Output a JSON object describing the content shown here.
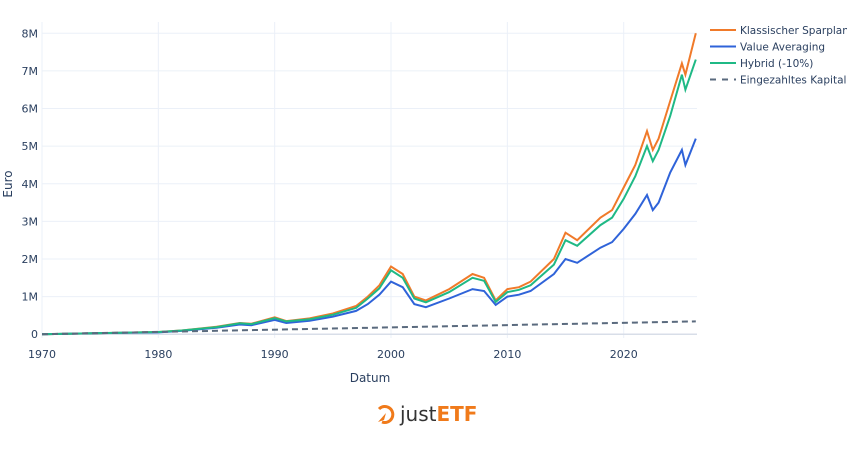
{
  "chart_data": {
    "type": "line",
    "xlabel": "Datum",
    "ylabel": "Euro",
    "xlim": [
      1970,
      2026.3
    ],
    "ylim": [
      -0.1,
      8.3
    ],
    "xticks": [
      1970,
      1980,
      1990,
      2000,
      2010,
      2020
    ],
    "yticks": [
      0,
      1,
      2,
      3,
      4,
      5,
      6,
      7,
      8
    ],
    "ytick_labels": [
      "0",
      "1M",
      "2M",
      "3M",
      "4M",
      "5M",
      "6M",
      "7M",
      "8M"
    ],
    "grid": true,
    "legend_position": "top-right",
    "series": [
      {
        "name": "Klassischer Sparplan",
        "color": "#f07a2a",
        "dash": false,
        "x": [
          1970,
          1975,
          1980,
          1982,
          1985,
          1987,
          1988,
          1990,
          1991,
          1993,
          1995,
          1997,
          1998,
          1999,
          2000,
          2001,
          2002,
          2003,
          2005,
          2007,
          2008,
          2009,
          2010,
          2011,
          2012,
          2014,
          2015,
          2016,
          2018,
          2019,
          2020,
          2021,
          2022,
          2022.5,
          2023,
          2024,
          2025,
          2025.3,
          2026.2
        ],
        "y": [
          0,
          0.03,
          0.06,
          0.1,
          0.2,
          0.3,
          0.28,
          0.45,
          0.35,
          0.42,
          0.55,
          0.75,
          1.0,
          1.3,
          1.8,
          1.6,
          1.0,
          0.9,
          1.2,
          1.6,
          1.5,
          0.9,
          1.2,
          1.25,
          1.4,
          2.0,
          2.7,
          2.5,
          3.1,
          3.3,
          3.9,
          4.5,
          5.4,
          4.9,
          5.2,
          6.2,
          7.2,
          6.9,
          8.0
        ]
      },
      {
        "name": "Value Averaging",
        "color": "#2f63d9",
        "dash": false,
        "x": [
          1970,
          1975,
          1980,
          1982,
          1985,
          1987,
          1988,
          1990,
          1991,
          1993,
          1995,
          1997,
          1998,
          1999,
          2000,
          2001,
          2002,
          2003,
          2005,
          2007,
          2008,
          2009,
          2010,
          2011,
          2012,
          2014,
          2015,
          2016,
          2018,
          2019,
          2020,
          2021,
          2022,
          2022.5,
          2023,
          2024,
          2025,
          2025.3,
          2026.2
        ],
        "y": [
          0,
          0.03,
          0.05,
          0.09,
          0.17,
          0.26,
          0.24,
          0.38,
          0.3,
          0.36,
          0.47,
          0.62,
          0.8,
          1.05,
          1.4,
          1.25,
          0.8,
          0.72,
          0.95,
          1.2,
          1.15,
          0.78,
          1.0,
          1.05,
          1.15,
          1.6,
          2.0,
          1.9,
          2.3,
          2.45,
          2.8,
          3.2,
          3.7,
          3.3,
          3.5,
          4.3,
          4.9,
          4.5,
          5.2
        ]
      },
      {
        "name": "Hybrid (-10%)",
        "color": "#1fb985",
        "dash": false,
        "x": [
          1970,
          1975,
          1980,
          1982,
          1985,
          1987,
          1988,
          1990,
          1991,
          1993,
          1995,
          1997,
          1998,
          1999,
          2000,
          2001,
          2002,
          2003,
          2005,
          2007,
          2008,
          2009,
          2010,
          2011,
          2012,
          2014,
          2015,
          2016,
          2018,
          2019,
          2020,
          2021,
          2022,
          2022.5,
          2023,
          2024,
          2025,
          2025.3,
          2026.2
        ],
        "y": [
          0,
          0.03,
          0.06,
          0.1,
          0.19,
          0.29,
          0.27,
          0.43,
          0.34,
          0.4,
          0.52,
          0.7,
          0.95,
          1.22,
          1.7,
          1.5,
          0.95,
          0.85,
          1.12,
          1.5,
          1.42,
          0.86,
          1.12,
          1.18,
          1.3,
          1.85,
          2.5,
          2.35,
          2.9,
          3.1,
          3.6,
          4.2,
          5.0,
          4.6,
          4.9,
          5.8,
          6.9,
          6.5,
          7.3
        ]
      },
      {
        "name": "Eingezahltes Kapital",
        "color": "#5a6a7e",
        "dash": true,
        "x": [
          1970,
          2026.2
        ],
        "y": [
          0,
          0.34
        ]
      }
    ]
  },
  "logo": {
    "text_a": "just",
    "text_b": "ETF",
    "color": "#f07a1a"
  }
}
